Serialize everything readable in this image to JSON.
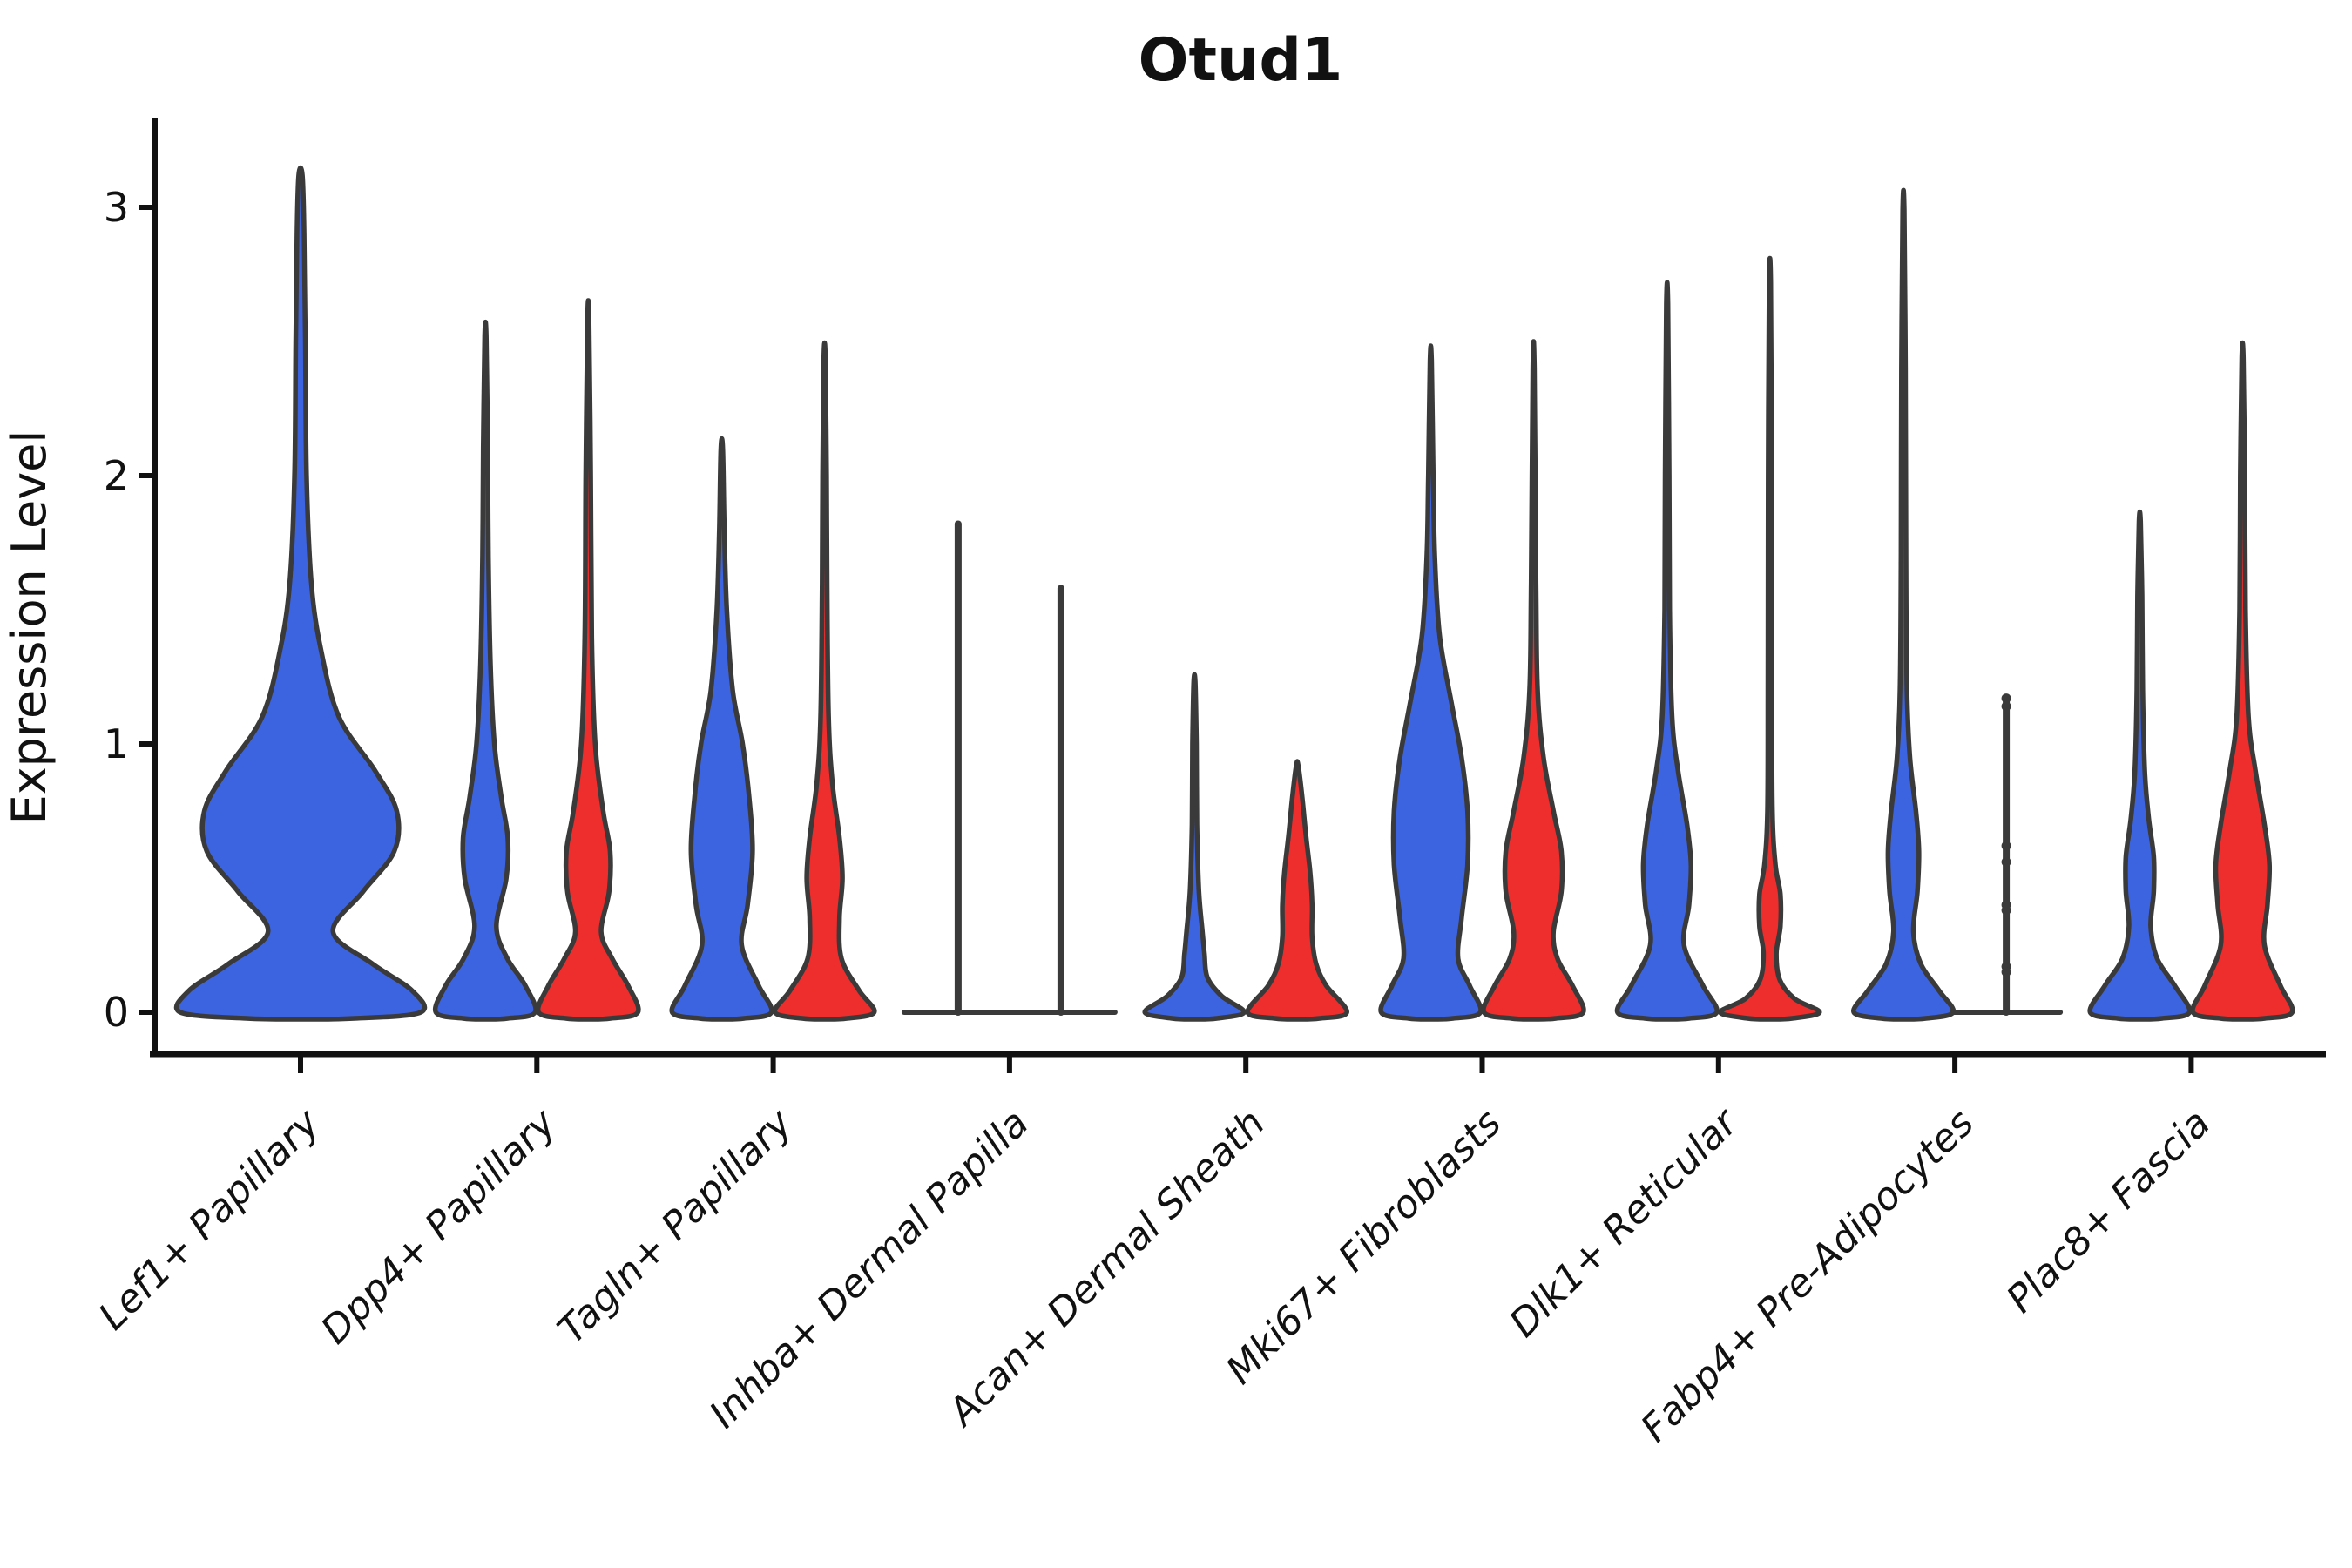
{
  "chart_data": {
    "type": "violin",
    "title": "Otud1",
    "ylabel": "Expression Level",
    "yticks": [
      0,
      1,
      2,
      3
    ],
    "ylim": [
      0,
      3.3
    ],
    "grid": false,
    "legend": "none",
    "colors": {
      "violin_blue": "#3D64E0",
      "violin_red": "#EE2D2D",
      "violin_outline": "#3A3A3A",
      "axis": "#111111"
    },
    "categories": [
      "Lef1+ Papillary",
      "Dpp4+ Papillary",
      "Tagln+ Papillary",
      "Inhba+ Dermal Papilla",
      "Acan+ Dermal Sheath",
      "Mki67+ Fibroblasts",
      "Dlk1+ Reticular",
      "Fabp4+ Pre-Adipocytes",
      "Plac8+ Fascia"
    ],
    "groups": [
      {
        "label": "Lef1+ Papillary",
        "violins": [
          {
            "color": "blue",
            "style": "violin",
            "max": 3.12,
            "profile": [
              [
                0,
                1.0
              ],
              [
                0.08,
                0.93
              ],
              [
                0.18,
                0.6
              ],
              [
                0.3,
                0.27
              ],
              [
                0.45,
                0.52
              ],
              [
                0.6,
                0.78
              ],
              [
                0.75,
                0.8
              ],
              [
                0.9,
                0.62
              ],
              [
                1.1,
                0.32
              ],
              [
                1.35,
                0.17
              ],
              [
                1.6,
                0.09
              ],
              [
                2.0,
                0.05
              ],
              [
                2.5,
                0.04
              ],
              [
                2.9,
                0.03
              ],
              [
                3.12,
                0.015
              ]
            ]
          }
        ]
      },
      {
        "label": "Dpp4+ Papillary",
        "violins": [
          {
            "color": "blue",
            "style": "violin",
            "max": 2.52,
            "profile": [
              [
                0,
                1.0
              ],
              [
                0.1,
                0.8
              ],
              [
                0.2,
                0.44
              ],
              [
                0.32,
                0.22
              ],
              [
                0.5,
                0.42
              ],
              [
                0.65,
                0.45
              ],
              [
                0.8,
                0.32
              ],
              [
                1.0,
                0.18
              ],
              [
                1.3,
                0.1
              ],
              [
                1.7,
                0.06
              ],
              [
                2.1,
                0.045
              ],
              [
                2.52,
                0.015
              ]
            ]
          },
          {
            "color": "red",
            "style": "violin",
            "max": 2.58,
            "profile": [
              [
                0,
                1.0
              ],
              [
                0.1,
                0.8
              ],
              [
                0.2,
                0.48
              ],
              [
                0.3,
                0.26
              ],
              [
                0.45,
                0.42
              ],
              [
                0.6,
                0.44
              ],
              [
                0.75,
                0.3
              ],
              [
                1.0,
                0.14
              ],
              [
                1.4,
                0.07
              ],
              [
                2.0,
                0.05
              ],
              [
                2.58,
                0.015
              ]
            ]
          }
        ]
      },
      {
        "label": "Tagln+ Papillary",
        "violins": [
          {
            "color": "blue",
            "style": "violin",
            "max": 2.1,
            "profile": [
              [
                0,
                1.0
              ],
              [
                0.1,
                0.74
              ],
              [
                0.25,
                0.4
              ],
              [
                0.4,
                0.52
              ],
              [
                0.6,
                0.62
              ],
              [
                0.8,
                0.55
              ],
              [
                1.0,
                0.42
              ],
              [
                1.2,
                0.22
              ],
              [
                1.5,
                0.1
              ],
              [
                1.8,
                0.05
              ],
              [
                2.1,
                0.02
              ]
            ]
          },
          {
            "color": "red",
            "style": "violin",
            "max": 2.44,
            "profile": [
              [
                0,
                1.0
              ],
              [
                0.08,
                0.7
              ],
              [
                0.2,
                0.34
              ],
              [
                0.35,
                0.3
              ],
              [
                0.5,
                0.36
              ],
              [
                0.65,
                0.3
              ],
              [
                0.85,
                0.16
              ],
              [
                1.1,
                0.08
              ],
              [
                1.6,
                0.05
              ],
              [
                2.0,
                0.04
              ],
              [
                2.44,
                0.015
              ]
            ]
          }
        ]
      },
      {
        "label": "Inhba+ Dermal Papilla",
        "violins": [
          {
            "color": "blue",
            "style": "flat",
            "max": 1.82
          },
          {
            "color": "red",
            "style": "flat",
            "max": 1.58
          }
        ]
      },
      {
        "label": "Acan+ Dermal Sheath",
        "violins": [
          {
            "color": "blue",
            "style": "violin",
            "max": 1.23,
            "profile": [
              [
                0,
                1.0
              ],
              [
                0.06,
                0.55
              ],
              [
                0.13,
                0.26
              ],
              [
                0.22,
                0.2
              ],
              [
                0.3,
                0.16
              ],
              [
                0.45,
                0.09
              ],
              [
                0.7,
                0.05
              ],
              [
                1.0,
                0.04
              ],
              [
                1.23,
                0.015
              ]
            ]
          },
          {
            "color": "red",
            "style": "violin",
            "max": 0.92,
            "profile": [
              [
                0,
                1.0
              ],
              [
                0.1,
                0.58
              ],
              [
                0.18,
                0.38
              ],
              [
                0.28,
                0.3
              ],
              [
                0.4,
                0.3
              ],
              [
                0.52,
                0.26
              ],
              [
                0.65,
                0.18
              ],
              [
                0.8,
                0.1
              ],
              [
                0.92,
                0.02
              ]
            ]
          }
        ]
      },
      {
        "label": "Mki67+ Fibroblasts",
        "violins": [
          {
            "color": "blue",
            "style": "violin",
            "max": 2.43,
            "profile": [
              [
                0,
                1.0
              ],
              [
                0.1,
                0.78
              ],
              [
                0.2,
                0.55
              ],
              [
                0.35,
                0.62
              ],
              [
                0.55,
                0.74
              ],
              [
                0.75,
                0.74
              ],
              [
                0.95,
                0.62
              ],
              [
                1.15,
                0.42
              ],
              [
                1.4,
                0.18
              ],
              [
                1.7,
                0.08
              ],
              [
                2.0,
                0.05
              ],
              [
                2.43,
                0.015
              ]
            ]
          },
          {
            "color": "red",
            "style": "violin",
            "max": 2.4,
            "profile": [
              [
                0,
                1.0
              ],
              [
                0.1,
                0.78
              ],
              [
                0.2,
                0.48
              ],
              [
                0.3,
                0.4
              ],
              [
                0.45,
                0.56
              ],
              [
                0.6,
                0.56
              ],
              [
                0.75,
                0.4
              ],
              [
                0.95,
                0.2
              ],
              [
                1.2,
                0.08
              ],
              [
                1.6,
                0.05
              ],
              [
                2.4,
                0.015
              ]
            ]
          }
        ]
      },
      {
        "label": "Dlk1+ Reticular",
        "violins": [
          {
            "color": "blue",
            "style": "violin",
            "max": 2.64,
            "profile": [
              [
                0,
                1.0
              ],
              [
                0.1,
                0.72
              ],
              [
                0.25,
                0.34
              ],
              [
                0.4,
                0.44
              ],
              [
                0.55,
                0.48
              ],
              [
                0.7,
                0.4
              ],
              [
                0.9,
                0.22
              ],
              [
                1.1,
                0.1
              ],
              [
                1.5,
                0.05
              ],
              [
                2.0,
                0.04
              ],
              [
                2.64,
                0.015
              ]
            ]
          },
          {
            "color": "red",
            "style": "violin",
            "max": 2.72,
            "profile": [
              [
                0,
                1.0
              ],
              [
                0.05,
                0.5
              ],
              [
                0.12,
                0.2
              ],
              [
                0.22,
                0.13
              ],
              [
                0.32,
                0.21
              ],
              [
                0.44,
                0.21
              ],
              [
                0.55,
                0.11
              ],
              [
                0.75,
                0.05
              ],
              [
                1.2,
                0.04
              ],
              [
                2.0,
                0.035
              ],
              [
                2.72,
                0.015
              ]
            ]
          }
        ]
      },
      {
        "label": "Fabp4+ Pre-Adipocytes",
        "violins": [
          {
            "color": "blue",
            "style": "violin",
            "max": 2.99,
            "profile": [
              [
                0,
                1.0
              ],
              [
                0.08,
                0.72
              ],
              [
                0.18,
                0.35
              ],
              [
                0.3,
                0.2
              ],
              [
                0.45,
                0.28
              ],
              [
                0.6,
                0.31
              ],
              [
                0.75,
                0.25
              ],
              [
                0.95,
                0.13
              ],
              [
                1.2,
                0.07
              ],
              [
                1.7,
                0.05
              ],
              [
                2.4,
                0.04
              ],
              [
                2.99,
                0.015
              ]
            ]
          },
          {
            "color": "red",
            "style": "flat",
            "max": 1.17,
            "points": [
              1.17,
              1.14,
              0.62,
              0.56,
              0.4,
              0.38,
              0.17,
              0.15
            ]
          }
        ]
      },
      {
        "label": "Plac8+ Fascia",
        "violins": [
          {
            "color": "blue",
            "style": "violin",
            "max": 1.83,
            "profile": [
              [
                0,
                1.0
              ],
              [
                0.1,
                0.7
              ],
              [
                0.2,
                0.35
              ],
              [
                0.32,
                0.22
              ],
              [
                0.45,
                0.28
              ],
              [
                0.58,
                0.28
              ],
              [
                0.72,
                0.18
              ],
              [
                0.9,
                0.1
              ],
              [
                1.2,
                0.06
              ],
              [
                1.55,
                0.045
              ],
              [
                1.83,
                0.015
              ]
            ]
          },
          {
            "color": "red",
            "style": "violin",
            "max": 2.44,
            "profile": [
              [
                0,
                1.0
              ],
              [
                0.1,
                0.76
              ],
              [
                0.25,
                0.44
              ],
              [
                0.4,
                0.5
              ],
              [
                0.55,
                0.54
              ],
              [
                0.7,
                0.44
              ],
              [
                0.9,
                0.26
              ],
              [
                1.1,
                0.12
              ],
              [
                1.5,
                0.06
              ],
              [
                2.0,
                0.045
              ],
              [
                2.44,
                0.015
              ]
            ]
          }
        ]
      }
    ]
  }
}
